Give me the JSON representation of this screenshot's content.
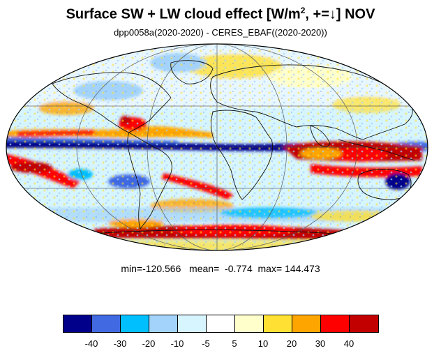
{
  "title_main": "Surface SW + LW cloud effect [W/m",
  "title_sup": "2",
  "title_rest": ", +=↓]  NOV",
  "subtitle": "dpp0058a(2020-2020) - CERES_EBAF((2020-2020))",
  "stats": {
    "min_label": "min=",
    "min": "-120.566",
    "mean_label": "mean=",
    "mean": "-0.774",
    "max_label": "max=",
    "max": "144.473"
  },
  "colorbar": {
    "colors": [
      "#00008b",
      "#4169e1",
      "#00bfff",
      "#a3d3fa",
      "#d6f5ff",
      "#ffffff",
      "#ffffcc",
      "#ffe033",
      "#ffa500",
      "#ff0000",
      "#c20000"
    ],
    "tick_labels": [
      "-40",
      "-30",
      "-20",
      "-10",
      "-5",
      "5",
      "10",
      "20",
      "30",
      "40"
    ]
  },
  "map": {
    "projection": "Mollweide",
    "field": "surface cloud radiative effect difference",
    "coastlines": true,
    "graticule": true
  }
}
